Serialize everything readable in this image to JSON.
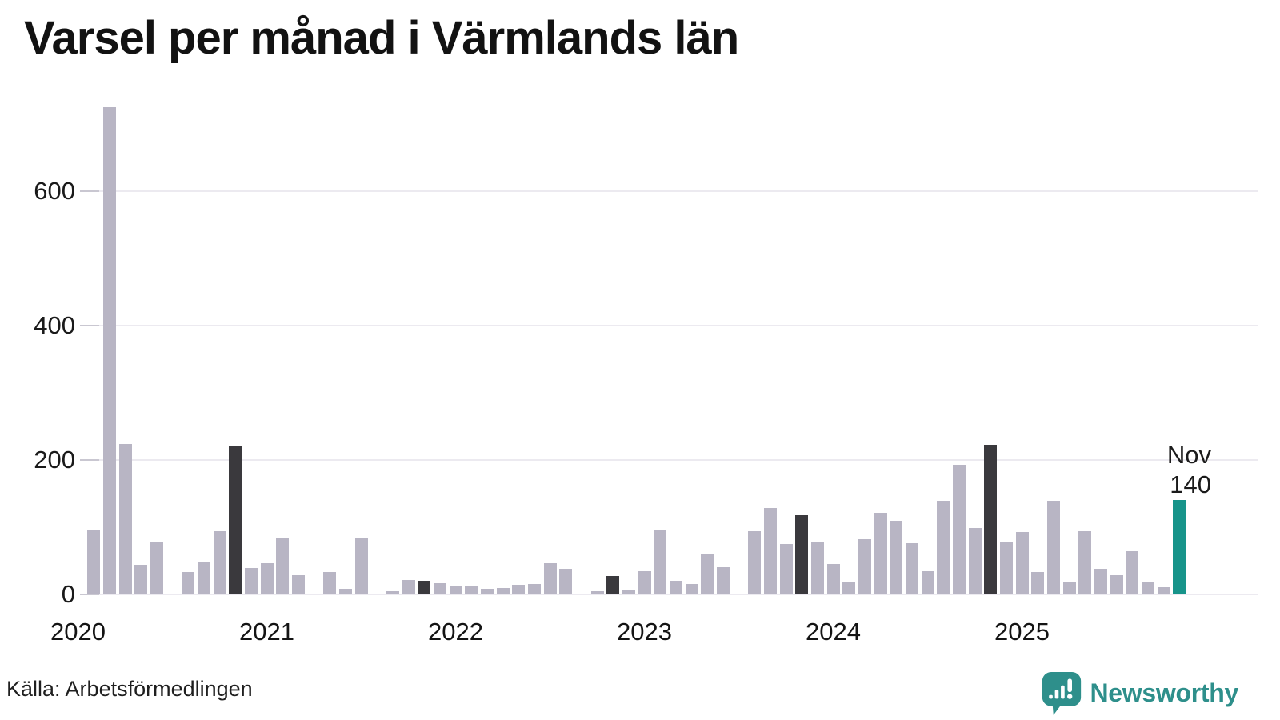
{
  "title": "Varsel per månad i Värmlands län",
  "source": "Källa: Arbetsförmedlingen",
  "brand": {
    "name": "Newsworthy",
    "icon": "speech-bubble-bar-chart-exclamation",
    "teal": "#2e8f8b"
  },
  "annotation": {
    "month_label": "Nov",
    "value_label": "140"
  },
  "colors": {
    "bar_normal": "#b8b5c4",
    "bar_november_highlight": "#3a393d",
    "bar_current_month": "#17948a",
    "gridline": "#eceaf0",
    "tick_dash": "#c9c7d1",
    "text": "#1a1a1a",
    "background": "#ffffff"
  },
  "chart_data": {
    "type": "bar",
    "title": "Varsel per månad i Värmlands län",
    "xlabel": "",
    "ylabel": "",
    "ylim": [
      0,
      750
    ],
    "yticks": [
      0,
      200,
      400,
      600
    ],
    "year_ticks": [
      "2020",
      "2021",
      "2022",
      "2023",
      "2024",
      "2025"
    ],
    "grid": "horizontal",
    "legend": "none",
    "note": "Monthly layoff notices Jan 2020 - Nov 2025; November of each year shown dark; current month (Nov 2025) shown teal with label",
    "months": [
      {
        "label": "2020-01",
        "value": 0,
        "type": "normal"
      },
      {
        "label": "2020-02",
        "value": 95,
        "type": "normal"
      },
      {
        "label": "2020-03",
        "value": 725,
        "type": "normal"
      },
      {
        "label": "2020-04",
        "value": 224,
        "type": "normal"
      },
      {
        "label": "2020-05",
        "value": 44,
        "type": "normal"
      },
      {
        "label": "2020-06",
        "value": 79,
        "type": "normal"
      },
      {
        "label": "2020-07",
        "value": 0,
        "type": "normal"
      },
      {
        "label": "2020-08",
        "value": 33,
        "type": "normal"
      },
      {
        "label": "2020-09",
        "value": 48,
        "type": "normal"
      },
      {
        "label": "2020-10",
        "value": 94,
        "type": "normal"
      },
      {
        "label": "2020-11",
        "value": 220,
        "type": "nov"
      },
      {
        "label": "2020-12",
        "value": 39,
        "type": "normal"
      },
      {
        "label": "2021-01",
        "value": 47,
        "type": "normal"
      },
      {
        "label": "2021-02",
        "value": 84,
        "type": "normal"
      },
      {
        "label": "2021-03",
        "value": 29,
        "type": "normal"
      },
      {
        "label": "2021-04",
        "value": 0,
        "type": "normal"
      },
      {
        "label": "2021-05",
        "value": 33,
        "type": "normal"
      },
      {
        "label": "2021-06",
        "value": 8,
        "type": "normal"
      },
      {
        "label": "2021-07",
        "value": 84,
        "type": "normal"
      },
      {
        "label": "2021-08",
        "value": 0,
        "type": "normal"
      },
      {
        "label": "2021-09",
        "value": 5,
        "type": "normal"
      },
      {
        "label": "2021-10",
        "value": 22,
        "type": "normal"
      },
      {
        "label": "2021-11",
        "value": 20,
        "type": "nov"
      },
      {
        "label": "2021-12",
        "value": 17,
        "type": "normal"
      },
      {
        "label": "2022-01",
        "value": 12,
        "type": "normal"
      },
      {
        "label": "2022-02",
        "value": 12,
        "type": "normal"
      },
      {
        "label": "2022-03",
        "value": 8,
        "type": "normal"
      },
      {
        "label": "2022-04",
        "value": 10,
        "type": "normal"
      },
      {
        "label": "2022-05",
        "value": 14,
        "type": "normal"
      },
      {
        "label": "2022-06",
        "value": 16,
        "type": "normal"
      },
      {
        "label": "2022-07",
        "value": 47,
        "type": "normal"
      },
      {
        "label": "2022-08",
        "value": 38,
        "type": "normal"
      },
      {
        "label": "2022-09",
        "value": 0,
        "type": "normal"
      },
      {
        "label": "2022-10",
        "value": 5,
        "type": "normal"
      },
      {
        "label": "2022-11",
        "value": 27,
        "type": "nov"
      },
      {
        "label": "2022-12",
        "value": 7,
        "type": "normal"
      },
      {
        "label": "2023-01",
        "value": 35,
        "type": "normal"
      },
      {
        "label": "2023-02",
        "value": 96,
        "type": "normal"
      },
      {
        "label": "2023-03",
        "value": 20,
        "type": "normal"
      },
      {
        "label": "2023-04",
        "value": 15,
        "type": "normal"
      },
      {
        "label": "2023-05",
        "value": 60,
        "type": "normal"
      },
      {
        "label": "2023-06",
        "value": 40,
        "type": "normal"
      },
      {
        "label": "2023-07",
        "value": 0,
        "type": "normal"
      },
      {
        "label": "2023-08",
        "value": 94,
        "type": "normal"
      },
      {
        "label": "2023-09",
        "value": 129,
        "type": "normal"
      },
      {
        "label": "2023-10",
        "value": 75,
        "type": "normal"
      },
      {
        "label": "2023-11",
        "value": 118,
        "type": "nov"
      },
      {
        "label": "2023-12",
        "value": 77,
        "type": "normal"
      },
      {
        "label": "2024-01",
        "value": 45,
        "type": "normal"
      },
      {
        "label": "2024-02",
        "value": 19,
        "type": "normal"
      },
      {
        "label": "2024-03",
        "value": 82,
        "type": "normal"
      },
      {
        "label": "2024-04",
        "value": 122,
        "type": "normal"
      },
      {
        "label": "2024-05",
        "value": 110,
        "type": "normal"
      },
      {
        "label": "2024-06",
        "value": 76,
        "type": "normal"
      },
      {
        "label": "2024-07",
        "value": 34,
        "type": "normal"
      },
      {
        "label": "2024-08",
        "value": 139,
        "type": "normal"
      },
      {
        "label": "2024-09",
        "value": 193,
        "type": "normal"
      },
      {
        "label": "2024-10",
        "value": 99,
        "type": "normal"
      },
      {
        "label": "2024-11",
        "value": 223,
        "type": "nov"
      },
      {
        "label": "2024-12",
        "value": 78,
        "type": "normal"
      },
      {
        "label": "2025-01",
        "value": 93,
        "type": "normal"
      },
      {
        "label": "2025-02",
        "value": 33,
        "type": "normal"
      },
      {
        "label": "2025-03",
        "value": 139,
        "type": "normal"
      },
      {
        "label": "2025-04",
        "value": 18,
        "type": "normal"
      },
      {
        "label": "2025-05",
        "value": 94,
        "type": "normal"
      },
      {
        "label": "2025-06",
        "value": 38,
        "type": "normal"
      },
      {
        "label": "2025-07",
        "value": 29,
        "type": "normal"
      },
      {
        "label": "2025-08",
        "value": 64,
        "type": "normal"
      },
      {
        "label": "2025-09",
        "value": 19,
        "type": "normal"
      },
      {
        "label": "2025-10",
        "value": 11,
        "type": "normal"
      },
      {
        "label": "2025-11",
        "value": 140,
        "type": "current"
      }
    ]
  }
}
